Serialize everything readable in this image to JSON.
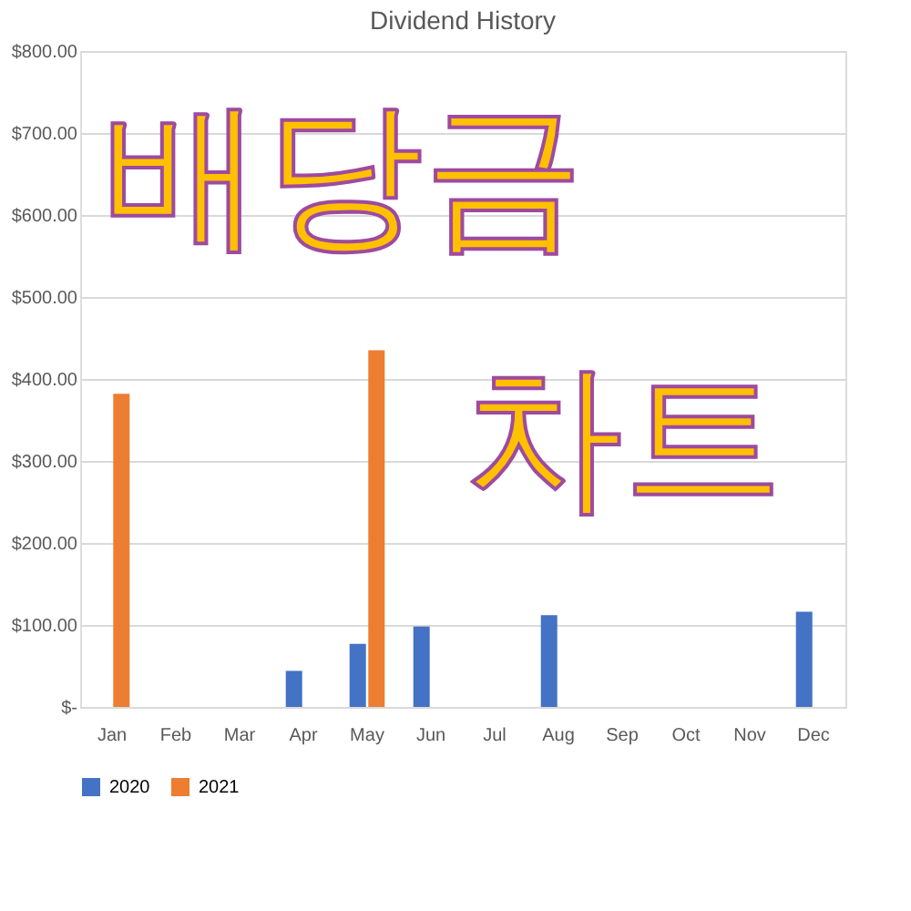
{
  "chart_data": {
    "type": "bar",
    "title": "Dividend History",
    "categories": [
      "Jan",
      "Feb",
      "Mar",
      "Apr",
      "May",
      "Jun",
      "Jul",
      "Aug",
      "Sep",
      "Oct",
      "Nov",
      "Dec"
    ],
    "series": [
      {
        "name": "2020",
        "color": "#4472c4",
        "values": [
          null,
          null,
          null,
          44,
          77,
          98,
          null,
          112,
          null,
          null,
          null,
          116
        ]
      },
      {
        "name": "2021",
        "color": "#ed7d31",
        "values": [
          382,
          null,
          null,
          null,
          435,
          null,
          null,
          null,
          null,
          null,
          null,
          null
        ]
      }
    ],
    "ylim": [
      0,
      800
    ],
    "yticks": [
      {
        "value": 0,
        "label": "$-"
      },
      {
        "value": 100,
        "label": "$100.00"
      },
      {
        "value": 200,
        "label": "$200.00"
      },
      {
        "value": 300,
        "label": "$300.00"
      },
      {
        "value": 400,
        "label": "$400.00"
      },
      {
        "value": 500,
        "label": "$500.00"
      },
      {
        "value": 600,
        "label": "$600.00"
      },
      {
        "value": 700,
        "label": "$700.00"
      },
      {
        "value": 800,
        "label": "$800.00"
      }
    ],
    "grid": "y",
    "legend": "bottom",
    "annotations": [
      "배당금",
      "차트"
    ]
  }
}
